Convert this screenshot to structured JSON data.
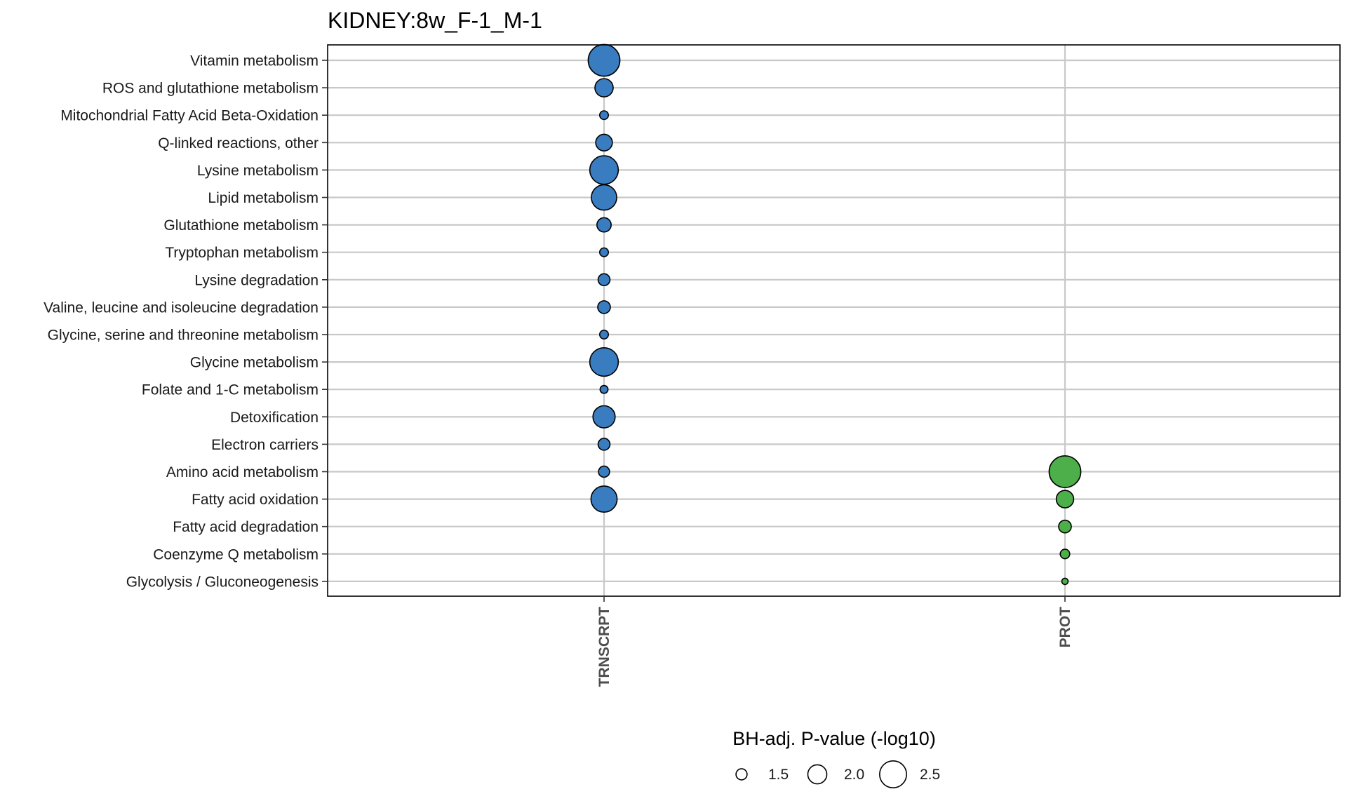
{
  "chart_data": {
    "type": "scatter",
    "title": "KIDNEY:8w_F-1_M-1",
    "categories": [
      "TRNSCRPT",
      "PROT"
    ],
    "pathways": [
      "Vitamin metabolism",
      "ROS and glutathione metabolism",
      "Mitochondrial Fatty Acid Beta-Oxidation",
      "Q-linked reactions, other",
      "Lysine metabolism",
      "Lipid metabolism",
      "Glutathione metabolism",
      "Tryptophan metabolism",
      "Lysine degradation",
      "Valine, leucine and isoleucine degradation",
      "Glycine, serine and threonine metabolism",
      "Glycine metabolism",
      "Folate and 1-C metabolism",
      "Detoxification",
      "Electron carriers",
      "Amino acid metabolism",
      "Fatty acid oxidation",
      "Fatty acid degradation",
      "Coenzyme Q metabolism",
      "Glycolysis / Gluconeogenesis"
    ],
    "colors": {
      "TRNSCRPT": "#3a7cc0",
      "PROT": "#4caf4a"
    },
    "series": [
      {
        "category": "TRNSCRPT",
        "values": [
          {
            "pathway": "Vitamin metabolism",
            "neglog10_p": 2.8
          },
          {
            "pathway": "ROS and glutathione metabolism",
            "neglog10_p": 1.95
          },
          {
            "pathway": "Mitochondrial Fatty Acid Beta-Oxidation",
            "neglog10_p": 1.35
          },
          {
            "pathway": "Q-linked reactions, other",
            "neglog10_p": 1.85
          },
          {
            "pathway": "Lysine metabolism",
            "neglog10_p": 2.6
          },
          {
            "pathway": "Lipid metabolism",
            "neglog10_p": 2.4
          },
          {
            "pathway": "Glutathione metabolism",
            "neglog10_p": 1.7
          },
          {
            "pathway": "Tryptophan metabolism",
            "neglog10_p": 1.35
          },
          {
            "pathway": "Lysine degradation",
            "neglog10_p": 1.55
          },
          {
            "pathway": "Valine, leucine and isoleucine degradation",
            "neglog10_p": 1.6
          },
          {
            "pathway": "Glycine, serine and threonine metabolism",
            "neglog10_p": 1.35
          },
          {
            "pathway": "Glycine metabolism",
            "neglog10_p": 2.6
          },
          {
            "pathway": "Folate and 1-C metabolism",
            "neglog10_p": 1.3
          },
          {
            "pathway": "Detoxification",
            "neglog10_p": 2.2
          },
          {
            "pathway": "Electron carriers",
            "neglog10_p": 1.55
          },
          {
            "pathway": "Amino acid metabolism",
            "neglog10_p": 1.5
          },
          {
            "pathway": "Fatty acid oxidation",
            "neglog10_p": 2.45
          }
        ]
      },
      {
        "category": "PROT",
        "values": [
          {
            "pathway": "Amino acid metabolism",
            "neglog10_p": 2.8
          },
          {
            "pathway": "Fatty acid oxidation",
            "neglog10_p": 1.9
          },
          {
            "pathway": "Fatty acid degradation",
            "neglog10_p": 1.6
          },
          {
            "pathway": "Coenzyme Q metabolism",
            "neglog10_p": 1.4
          },
          {
            "pathway": "Glycolysis / Gluconeogenesis",
            "neglog10_p": 1.2
          }
        ]
      }
    ],
    "legend": {
      "title": "BH-adj. P-value (-log10)",
      "breaks": [
        1.5,
        2.0,
        2.5
      ],
      "labels": [
        "1.5",
        "2.0",
        "2.5"
      ],
      "position": "bottom"
    }
  }
}
